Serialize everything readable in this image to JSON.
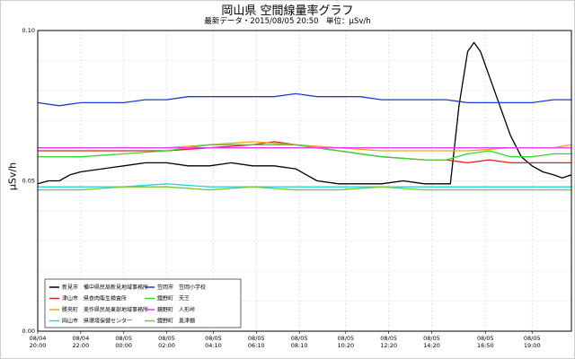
{
  "chart_data": {
    "type": "line",
    "title": "岡山県 空間線量率グラフ",
    "subtitle": "最新データ・2015/08/05 20:50　単位：μSv/h",
    "ylabel": "μSv/h",
    "ylim": [
      0,
      0.1
    ],
    "yticks": [
      "0.00",
      "0.05",
      "0.10"
    ],
    "xlim": [
      0,
      24.83
    ],
    "xticks": [
      {
        "x": 0,
        "date": "08/04",
        "time": "20:00"
      },
      {
        "x": 2.0,
        "date": "08/04",
        "time": "22:00"
      },
      {
        "x": 4.0,
        "date": "08/05",
        "time": "00:00"
      },
      {
        "x": 6.0,
        "date": "08/05",
        "time": "02:00"
      },
      {
        "x": 8.17,
        "date": "08/05",
        "time": "04:10"
      },
      {
        "x": 10.17,
        "date": "08/05",
        "time": "06:10"
      },
      {
        "x": 12.17,
        "date": "08/05",
        "time": "08:10"
      },
      {
        "x": 14.33,
        "date": "08/05",
        "time": "10:20"
      },
      {
        "x": 16.33,
        "date": "08/05",
        "time": "12:20"
      },
      {
        "x": 18.33,
        "date": "08/05",
        "time": "14:20"
      },
      {
        "x": 20.83,
        "date": "08/05",
        "time": "16:50"
      },
      {
        "x": 23.0,
        "date": "08/05",
        "time": "19:00"
      }
    ],
    "grid": true,
    "legend_position": "bottom-left",
    "series": [
      {
        "name": "新見市　備中県民局新見地域事務所",
        "color": "#000000",
        "points": [
          [
            0,
            0.049
          ],
          [
            0.5,
            0.05
          ],
          [
            1,
            0.05
          ],
          [
            1.5,
            0.052
          ],
          [
            2,
            0.053
          ],
          [
            3,
            0.054
          ],
          [
            4,
            0.055
          ],
          [
            5,
            0.056
          ],
          [
            6,
            0.056
          ],
          [
            7,
            0.055
          ],
          [
            8,
            0.055
          ],
          [
            9,
            0.056
          ],
          [
            10,
            0.055
          ],
          [
            11,
            0.055
          ],
          [
            12,
            0.054
          ],
          [
            12.5,
            0.052
          ],
          [
            13,
            0.05
          ],
          [
            14,
            0.049
          ],
          [
            15,
            0.049
          ],
          [
            16,
            0.049
          ],
          [
            17,
            0.05
          ],
          [
            18,
            0.049
          ],
          [
            19,
            0.049
          ],
          [
            19.2,
            0.049
          ],
          [
            19.6,
            0.075
          ],
          [
            20.0,
            0.093
          ],
          [
            20.3,
            0.096
          ],
          [
            20.6,
            0.093
          ],
          [
            21.0,
            0.085
          ],
          [
            21.5,
            0.075
          ],
          [
            22.0,
            0.065
          ],
          [
            22.5,
            0.058
          ],
          [
            23,
            0.055
          ],
          [
            23.5,
            0.053
          ],
          [
            24,
            0.052
          ],
          [
            24.4,
            0.051
          ],
          [
            24.83,
            0.052
          ]
        ]
      },
      {
        "name": "津山市　県食肉衛生検査所",
        "color": "#e0201e",
        "points": [
          [
            0,
            0.06
          ],
          [
            2,
            0.06
          ],
          [
            4,
            0.06
          ],
          [
            6,
            0.06
          ],
          [
            8,
            0.061
          ],
          [
            10,
            0.062
          ],
          [
            11,
            0.063
          ],
          [
            12,
            0.062
          ],
          [
            13,
            0.061
          ],
          [
            14,
            0.06
          ],
          [
            15,
            0.059
          ],
          [
            16,
            0.058
          ],
          [
            18,
            0.057
          ],
          [
            19,
            0.057
          ],
          [
            20,
            0.056
          ],
          [
            21,
            0.057
          ],
          [
            22,
            0.056
          ],
          [
            23,
            0.056
          ],
          [
            24,
            0.056
          ],
          [
            24.83,
            0.056
          ]
        ]
      },
      {
        "name": "勝央町　美作県民局東部地域事務所",
        "color": "#f6a01a",
        "points": [
          [
            0,
            0.061
          ],
          [
            2,
            0.061
          ],
          [
            4,
            0.061
          ],
          [
            6,
            0.061
          ],
          [
            8,
            0.062
          ],
          [
            10,
            0.063
          ],
          [
            12,
            0.062
          ],
          [
            14,
            0.061
          ],
          [
            16,
            0.06
          ],
          [
            18,
            0.06
          ],
          [
            20,
            0.06
          ],
          [
            22,
            0.061
          ],
          [
            24,
            0.061
          ],
          [
            24.83,
            0.062
          ]
        ]
      },
      {
        "name": "岡山市　県環境保健センター",
        "color": "#21d8de",
        "points": [
          [
            0,
            0.048
          ],
          [
            2,
            0.048
          ],
          [
            4,
            0.048
          ],
          [
            6,
            0.049
          ],
          [
            8,
            0.048
          ],
          [
            10,
            0.048
          ],
          [
            12,
            0.048
          ],
          [
            14,
            0.048
          ],
          [
            16,
            0.048
          ],
          [
            18,
            0.048
          ],
          [
            20,
            0.048
          ],
          [
            22,
            0.048
          ],
          [
            24,
            0.048
          ],
          [
            24.83,
            0.048
          ]
        ]
      },
      {
        "name": "笠岡市　笠岡小学校",
        "color": "#1f3ad0",
        "points": [
          [
            0,
            0.076
          ],
          [
            1,
            0.075
          ],
          [
            2,
            0.076
          ],
          [
            3,
            0.076
          ],
          [
            4,
            0.076
          ],
          [
            5,
            0.077
          ],
          [
            6,
            0.077
          ],
          [
            7,
            0.078
          ],
          [
            8,
            0.078
          ],
          [
            9,
            0.078
          ],
          [
            10,
            0.078
          ],
          [
            11,
            0.078
          ],
          [
            12,
            0.079
          ],
          [
            13,
            0.078
          ],
          [
            14,
            0.078
          ],
          [
            15,
            0.078
          ],
          [
            16,
            0.077
          ],
          [
            17,
            0.077
          ],
          [
            18,
            0.077
          ],
          [
            19,
            0.077
          ],
          [
            20,
            0.076
          ],
          [
            21,
            0.076
          ],
          [
            22,
            0.076
          ],
          [
            23,
            0.076
          ],
          [
            24,
            0.077
          ],
          [
            24.83,
            0.077
          ]
        ]
      },
      {
        "name": "鏡野町　天王",
        "color": "#33d833",
        "points": [
          [
            0,
            0.058
          ],
          [
            2,
            0.058
          ],
          [
            4,
            0.059
          ],
          [
            6,
            0.06
          ],
          [
            8,
            0.062
          ],
          [
            10,
            0.062
          ],
          [
            12,
            0.062
          ],
          [
            14,
            0.06
          ],
          [
            16,
            0.058
          ],
          [
            18,
            0.057
          ],
          [
            19,
            0.057
          ],
          [
            20,
            0.059
          ],
          [
            21,
            0.06
          ],
          [
            22,
            0.058
          ],
          [
            23,
            0.058
          ],
          [
            24,
            0.059
          ],
          [
            24.83,
            0.059
          ]
        ]
      },
      {
        "name": "鏡野町　人形峠",
        "color": "#e63ee6",
        "points": [
          [
            0,
            0.061
          ],
          [
            2,
            0.061
          ],
          [
            4,
            0.061
          ],
          [
            6,
            0.061
          ],
          [
            8,
            0.061
          ],
          [
            10,
            0.061
          ],
          [
            12,
            0.061
          ],
          [
            14,
            0.061
          ],
          [
            16,
            0.061
          ],
          [
            18,
            0.061
          ],
          [
            20,
            0.061
          ],
          [
            22,
            0.061
          ],
          [
            24,
            0.061
          ],
          [
            24.83,
            0.061
          ]
        ]
      },
      {
        "name": "鏡野町　奥津棚",
        "color": "#73c82a",
        "points": [
          [
            0,
            0.047
          ],
          [
            2,
            0.047
          ],
          [
            4,
            0.048
          ],
          [
            6,
            0.048
          ],
          [
            8,
            0.047
          ],
          [
            10,
            0.048
          ],
          [
            12,
            0.047
          ],
          [
            14,
            0.047
          ],
          [
            16,
            0.048
          ],
          [
            18,
            0.047
          ],
          [
            20,
            0.047
          ],
          [
            22,
            0.047
          ],
          [
            24,
            0.047
          ],
          [
            24.83,
            0.047
          ]
        ]
      }
    ]
  }
}
